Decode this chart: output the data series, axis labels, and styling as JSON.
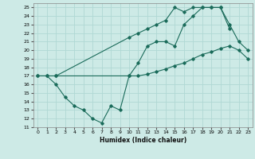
{
  "xlabel": "Humidex (Indice chaleur)",
  "xlim": [
    -0.5,
    23.5
  ],
  "ylim": [
    11,
    25.5
  ],
  "yticks": [
    11,
    12,
    13,
    14,
    15,
    16,
    17,
    18,
    19,
    20,
    21,
    22,
    23,
    24,
    25
  ],
  "xticks": [
    0,
    1,
    2,
    3,
    4,
    5,
    6,
    7,
    8,
    9,
    10,
    11,
    12,
    13,
    14,
    15,
    16,
    17,
    18,
    19,
    20,
    21,
    22,
    23
  ],
  "bg_color": "#cdeae6",
  "grid_color": "#b0d8d4",
  "line_color": "#1a6b5a",
  "line1_x": [
    0,
    1,
    2,
    3,
    4,
    5,
    6,
    7,
    8,
    9,
    10,
    11,
    12,
    13,
    14,
    15,
    16,
    17,
    18,
    19,
    20,
    21,
    22,
    23
  ],
  "line1_y": [
    17,
    17,
    16,
    14.5,
    13.5,
    13,
    12,
    11.5,
    13.5,
    13,
    17,
    18.5,
    20.5,
    21,
    21,
    20.5,
    23,
    24,
    25,
    25,
    25,
    23,
    21,
    20
  ],
  "line2_x": [
    0,
    1,
    2,
    10,
    11,
    12,
    13,
    14,
    15,
    16,
    17,
    18,
    19,
    20,
    21,
    22,
    23
  ],
  "line2_y": [
    17,
    17,
    17,
    17,
    17,
    17.2,
    17.5,
    17.8,
    18.2,
    18.5,
    19,
    19.5,
    19.8,
    20.2,
    20.5,
    20,
    19
  ],
  "line3_x": [
    2,
    10,
    11,
    12,
    13,
    14,
    15,
    16,
    17,
    18,
    19,
    20,
    21
  ],
  "line3_y": [
    17,
    21.5,
    22,
    22.5,
    23,
    23.5,
    25,
    24.5,
    25,
    25,
    25,
    25,
    22.5
  ]
}
